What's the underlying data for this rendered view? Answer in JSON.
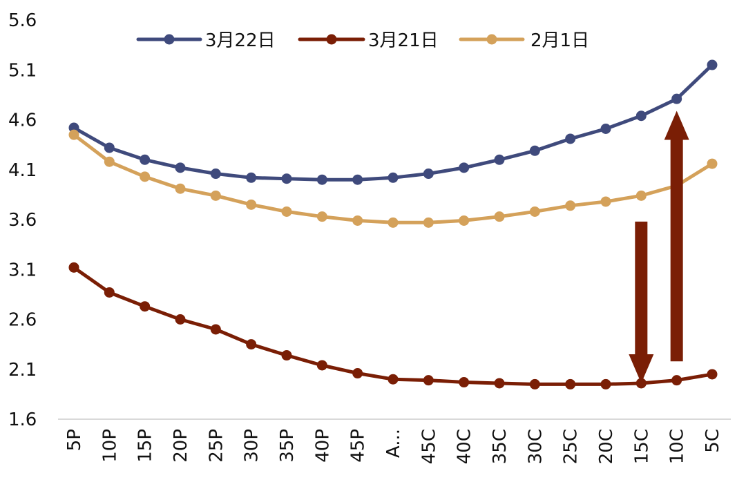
{
  "chart_data": {
    "type": "line",
    "title": "",
    "xlabel": "",
    "ylabel": "",
    "categories": [
      "5P",
      "10P",
      "15P",
      "20P",
      "25P",
      "30P",
      "35P",
      "40P",
      "45P",
      "A...",
      "45C",
      "40C",
      "35C",
      "30C",
      "25C",
      "20C",
      "15C",
      "10C",
      "5C"
    ],
    "y_ticks": [
      "1.6",
      "2.1",
      "2.6",
      "3.1",
      "3.6",
      "4.1",
      "4.6",
      "5.1",
      "5.6"
    ],
    "ylim": [
      1.6,
      5.6
    ],
    "grid": false,
    "legend_position": "top",
    "series": [
      {
        "name": "3月22日",
        "color": "#3F4A7C",
        "values": [
          4.52,
          4.32,
          4.2,
          4.12,
          4.06,
          4.02,
          4.01,
          4.0,
          4.0,
          4.02,
          4.06,
          4.12,
          4.2,
          4.29,
          4.41,
          4.51,
          4.64,
          4.81,
          5.15
        ]
      },
      {
        "name": "3月21日",
        "color": "#7A1E05",
        "values": [
          3.12,
          2.87,
          2.73,
          2.6,
          2.5,
          2.35,
          2.24,
          2.14,
          2.06,
          2.0,
          1.99,
          1.97,
          1.96,
          1.95,
          1.95,
          1.95,
          1.96,
          1.99,
          2.05
        ]
      },
      {
        "name": "2月1日",
        "color": "#D4A15A",
        "values": [
          4.45,
          4.18,
          4.03,
          3.91,
          3.84,
          3.75,
          3.68,
          3.63,
          3.59,
          3.57,
          3.57,
          3.59,
          3.63,
          3.68,
          3.74,
          3.78,
          3.84,
          3.94,
          4.16
        ]
      }
    ],
    "annotations": [
      {
        "type": "arrow",
        "direction": "down",
        "color": "#7A1E05",
        "x_category": "15C",
        "y_from": 3.58,
        "y_to": 1.96
      },
      {
        "type": "arrow",
        "direction": "up",
        "color": "#7A1E05",
        "x_category": "10C",
        "y_from": 2.18,
        "y_to": 4.69
      }
    ]
  }
}
